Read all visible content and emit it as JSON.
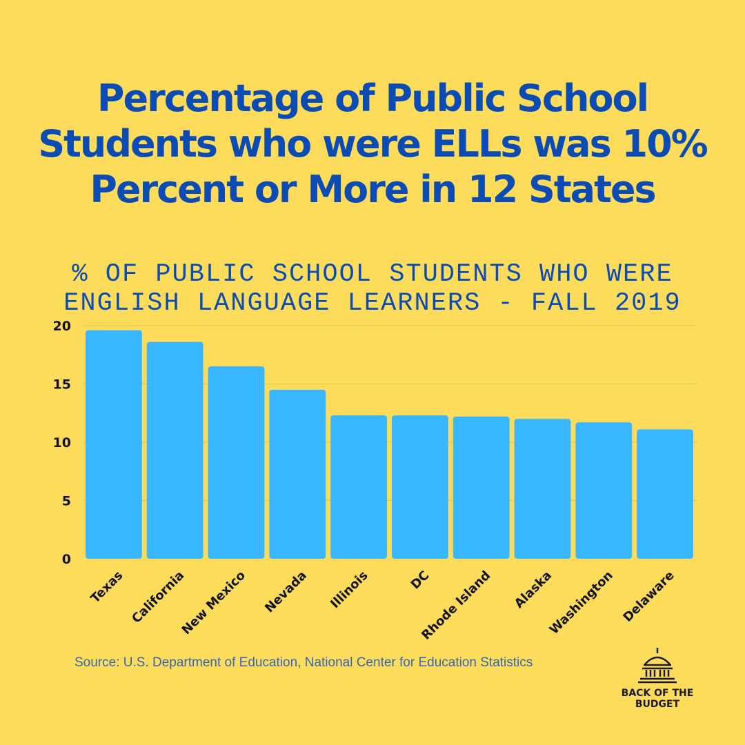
{
  "title": "Percentage of Public School Students who were ELLs was 10% Percent or More in 12 States",
  "chart_data": {
    "type": "bar",
    "title": "% OF PUBLIC SCHOOL STUDENTS WHO WERE ENGLISH LANGUAGE LEARNERS - FALL 2019",
    "categories": [
      "Texas",
      "California",
      "New Mexico",
      "Nevada",
      "Illinois",
      "DC",
      "Rhode Island",
      "Alaska",
      "Washington",
      "Delaware"
    ],
    "values": [
      19.6,
      18.6,
      16.5,
      14.5,
      12.3,
      12.3,
      12.2,
      12.0,
      11.7,
      11.1
    ],
    "ylim": [
      0,
      20
    ],
    "yticks": [
      0,
      5,
      10,
      15,
      20
    ],
    "xlabel": "",
    "ylabel": "",
    "grid": true,
    "bar_color": "#38b6ff"
  },
  "source": "Source: U.S. Department of Education, National Center for Education Statistics",
  "logo": {
    "text": "BACK OF THE\nBUDGET",
    "icon": "capitol-dome-icon"
  },
  "colors": {
    "background": "#fddc5c",
    "title": "#0b4cb4",
    "bar": "#38b6ff",
    "source": "#3766b0"
  }
}
